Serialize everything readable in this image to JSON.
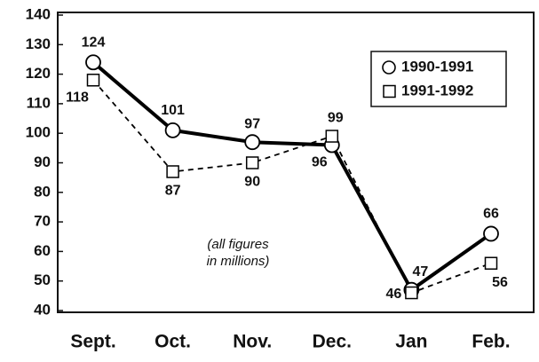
{
  "chart_data": {
    "type": "line",
    "categories": [
      "Sept.",
      "Oct.",
      "Nov.",
      "Dec.",
      "Jan",
      "Feb."
    ],
    "series": [
      {
        "name": "1990-1991",
        "color": "#000000",
        "values": [
          124,
          101,
          97,
          96,
          47,
          66
        ]
      },
      {
        "name": "1991-1992",
        "color": "#000000",
        "values": [
          118,
          87,
          90,
          99,
          46,
          56
        ]
      }
    ],
    "ylim": [
      40,
      140
    ],
    "yticks": [
      40,
      50,
      60,
      70,
      80,
      90,
      100,
      110,
      120,
      130,
      140
    ],
    "annotation": [
      "(all figures",
      "in millions)"
    ],
    "legend": "upper right"
  }
}
